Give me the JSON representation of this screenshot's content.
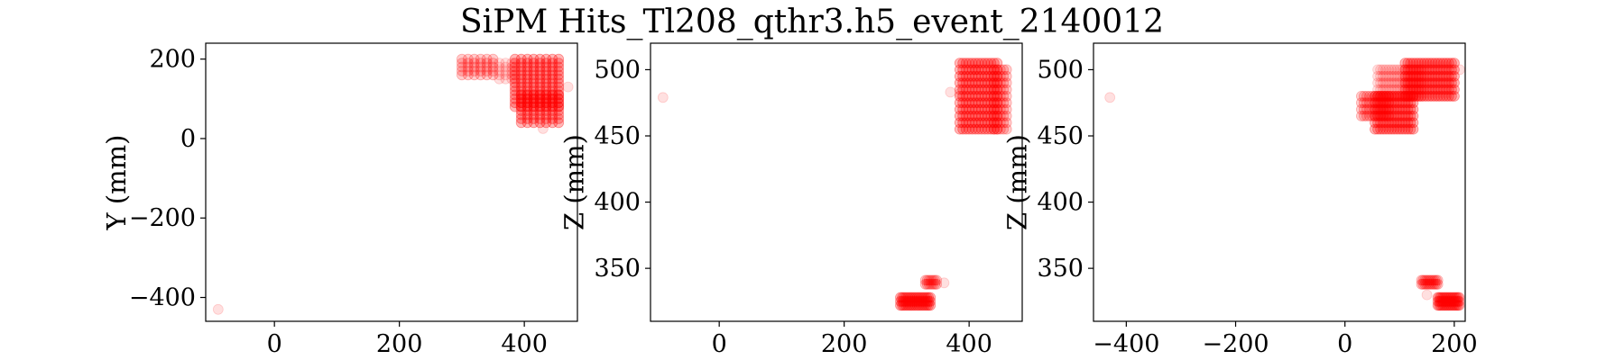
{
  "title": "SiPM Hits_Tl208_qthr3.h5_event_2140012",
  "colors": {
    "marker": "#ff0000",
    "axes": "#000000",
    "background": "#ffffff"
  },
  "chart_data": [
    {
      "type": "scatter",
      "ylabel": "Y (mm)",
      "xlim": [
        -110,
        485
      ],
      "ylim": [
        -460,
        240
      ],
      "xticks": [
        0,
        200,
        400
      ],
      "yticks": [
        -400,
        -200,
        0,
        200
      ],
      "x_tick_labels": [
        "0",
        "200",
        "400"
      ],
      "y_tick_labels": [
        "−400",
        "−200",
        "0",
        "200"
      ],
      "clusters": [
        {
          "x": [
            300,
            355
          ],
          "y": [
            160,
            200
          ],
          "step": 10,
          "density": "medium"
        },
        {
          "x": [
            360,
            380
          ],
          "y": [
            150,
            190
          ],
          "step": 10,
          "density": "light"
        },
        {
          "x": [
            385,
            460
          ],
          "y": [
            80,
            200
          ],
          "step": 10,
          "density": "heavy"
        },
        {
          "x": [
            395,
            460
          ],
          "y": [
            40,
            110
          ],
          "step": 10,
          "density": "heavy"
        }
      ],
      "points": [
        [
          -90,
          -430
        ],
        [
          430,
          25
        ],
        [
          470,
          130
        ]
      ]
    },
    {
      "type": "scatter",
      "ylabel": "Z (mm)",
      "xlim": [
        -110,
        485
      ],
      "ylim": [
        310,
        520
      ],
      "xticks": [
        0,
        200,
        400
      ],
      "yticks": [
        350,
        400,
        450,
        500
      ],
      "x_tick_labels": [
        "0",
        "200",
        "400"
      ],
      "y_tick_labels": [
        "350",
        "400",
        "450",
        "500"
      ],
      "clusters": [
        {
          "x": [
            385,
            445
          ],
          "y": [
            455,
            505
          ],
          "step": 5,
          "density": "heavy"
        },
        {
          "x": [
            440,
            460
          ],
          "y": [
            455,
            500
          ],
          "step": 5,
          "density": "medium"
        },
        {
          "x": [
            290,
            340
          ],
          "y": [
            322,
            328
          ],
          "step": 3,
          "density": "heavy"
        },
        {
          "x": [
            330,
            350
          ],
          "y": [
            338,
            342
          ],
          "step": 3,
          "density": "medium"
        }
      ],
      "points": [
        [
          -90,
          479
        ],
        [
          360,
          339
        ],
        [
          370,
          483
        ],
        [
          385,
          482
        ],
        [
          410,
          500
        ]
      ]
    },
    {
      "type": "scatter",
      "ylabel": "Z (mm)",
      "xlim": [
        -460,
        220
      ],
      "ylim": [
        310,
        520
      ],
      "xticks": [
        -400,
        -200,
        0,
        200
      ],
      "yticks": [
        350,
        400,
        450,
        500
      ],
      "x_tick_labels": [
        "−400",
        "−200",
        "0",
        "200"
      ],
      "y_tick_labels": [
        "350",
        "400",
        "450",
        "500"
      ],
      "clusters": [
        {
          "x": [
            55,
            125
          ],
          "y": [
            455,
            480
          ],
          "step": 5,
          "density": "heavy"
        },
        {
          "x": [
            30,
            80
          ],
          "y": [
            465,
            480
          ],
          "step": 5,
          "density": "medium"
        },
        {
          "x": [
            110,
            200
          ],
          "y": [
            480,
            505
          ],
          "step": 5,
          "density": "heavy"
        },
        {
          "x": [
            60,
            140
          ],
          "y": [
            480,
            500
          ],
          "step": 5,
          "density": "light"
        },
        {
          "x": [
            170,
            210
          ],
          "y": [
            322,
            328
          ],
          "step": 3,
          "density": "heavy"
        },
        {
          "x": [
            140,
            170
          ],
          "y": [
            338,
            342
          ],
          "step": 3,
          "density": "medium"
        }
      ],
      "points": [
        [
          -430,
          479
        ],
        [
          150,
          330
        ],
        [
          210,
          500
        ]
      ]
    }
  ]
}
